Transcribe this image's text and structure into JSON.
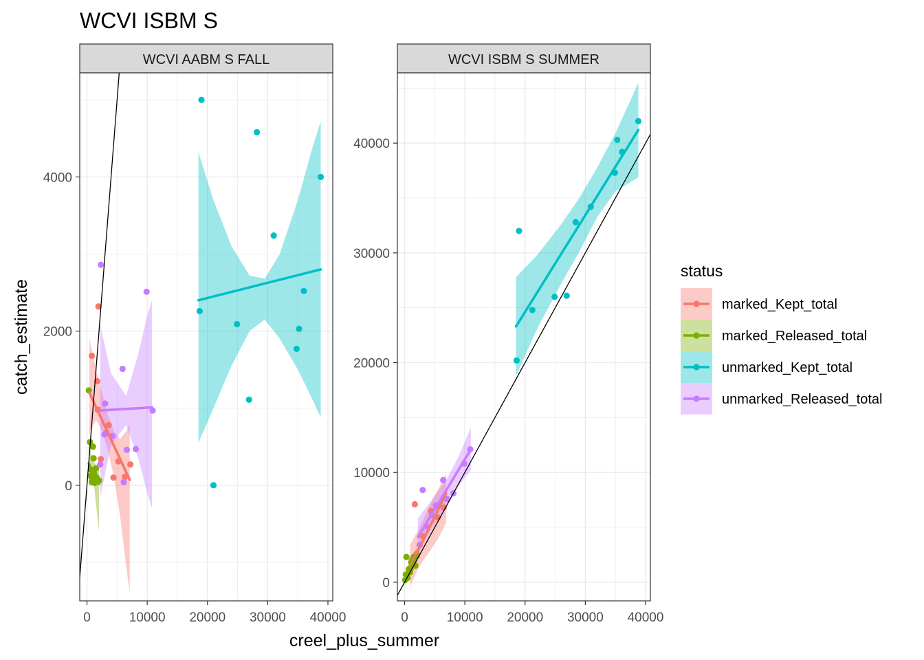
{
  "chart_data": {
    "type": "scatter",
    "title": "WCVI ISBM S",
    "xlabel": "creel_plus_summer",
    "ylabel": "catch_estimate",
    "legend": {
      "title": "status",
      "position": "right",
      "entries": [
        "marked_Kept_total",
        "marked_Released_total",
        "unmarked_Kept_total",
        "unmarked_Released_total"
      ]
    },
    "colors": {
      "marked_Kept_total": "#F8766D",
      "marked_Released_total": "#7CAE00",
      "unmarked_Kept_total": "#00BFC4",
      "unmarked_Released_total": "#C77CFF",
      "strip_fill": "#d9d9d9",
      "grid": "#ebebeb"
    },
    "grid": true,
    "reference_line": "y = x",
    "panels": [
      {
        "strip": "WCVI AABM S FALL",
        "xlim": [
          -1200,
          40800
        ],
        "ylim": [
          -1500,
          5350
        ],
        "x_ticks": [
          0,
          10000,
          20000,
          30000,
          40000
        ],
        "x_tick_labels": [
          "0",
          "10000",
          "20000",
          "30000",
          "40000"
        ],
        "y_ticks": [
          0,
          2000,
          4000
        ],
        "y_tick_labels": [
          "0",
          "2000",
          "4000"
        ],
        "series": [
          {
            "name": "marked_Kept_total",
            "points": [
              [
                800,
                1680
              ],
              [
                1900,
                2320
              ],
              [
                1700,
                1350
              ],
              [
                1800,
                980
              ],
              [
                2300,
                340
              ],
              [
                3200,
                680
              ],
              [
                3600,
                780
              ],
              [
                4400,
                100
              ],
              [
                5200,
                310
              ],
              [
                6300,
                110
              ],
              [
                7200,
                270
              ]
            ],
            "fit": [
              [
                400,
                1200
              ],
              [
                7100,
                70
              ]
            ],
            "band": [
              [
                400,
                1900,
                650
              ],
              [
                1500,
                1500,
                850
              ],
              [
                2500,
                1200,
                700
              ],
              [
                3500,
                900,
                450
              ],
              [
                4500,
                700,
                100
              ],
              [
                5500,
                600,
                -400
              ],
              [
                6500,
                700,
                -1050
              ],
              [
                7100,
                800,
                -1400
              ]
            ]
          },
          {
            "name": "marked_Released_total",
            "points": [
              [
                300,
                1230
              ],
              [
                500,
                560
              ],
              [
                700,
                200
              ],
              [
                600,
                120
              ],
              [
                900,
                80
              ],
              [
                1000,
                500
              ],
              [
                1100,
                350
              ],
              [
                1200,
                150
              ],
              [
                1300,
                30
              ],
              [
                1500,
                220
              ],
              [
                1600,
                100
              ],
              [
                2000,
                60
              ],
              [
                800,
                40
              ]
            ],
            "fit": [
              [
                300,
                280
              ],
              [
                2000,
                20
              ]
            ],
            "band": [
              [
                300,
                550,
                50
              ],
              [
                700,
                430,
                100
              ],
              [
                1100,
                310,
                40
              ],
              [
                1500,
                260,
                -250
              ],
              [
                2000,
                280,
                -600
              ]
            ]
          },
          {
            "name": "unmarked_Kept_total",
            "points": [
              [
                19000,
                5000
              ],
              [
                28200,
                4580
              ],
              [
                38800,
                4000
              ],
              [
                31000,
                3240
              ],
              [
                36000,
                2520
              ],
              [
                18700,
                2260
              ],
              [
                24900,
                2090
              ],
              [
                35200,
                2030
              ],
              [
                34800,
                1770
              ],
              [
                26900,
                1110
              ],
              [
                21000,
                0
              ]
            ],
            "fit": [
              [
                18500,
                2400
              ],
              [
                38800,
                2800
              ]
            ],
            "band": [
              [
                18500,
                4320,
                550
              ],
              [
                21000,
                3700,
                1000
              ],
              [
                24000,
                3100,
                1550
              ],
              [
                27000,
                2720,
                2000
              ],
              [
                29500,
                2680,
                2150
              ],
              [
                32000,
                3000,
                1900
              ],
              [
                35000,
                3700,
                1500
              ],
              [
                37500,
                4400,
                1100
              ],
              [
                38800,
                4720,
                880
              ]
            ]
          },
          {
            "name": "unmarked_Released_total",
            "points": [
              [
                2300,
                2860
              ],
              [
                2200,
                270
              ],
              [
                3000,
                1060
              ],
              [
                2900,
                660
              ],
              [
                4200,
                640
              ],
              [
                5900,
                1510
              ],
              [
                6100,
                40
              ],
              [
                6600,
                460
              ],
              [
                8100,
                470
              ],
              [
                9900,
                2510
              ],
              [
                10900,
                970
              ]
            ],
            "fit": [
              [
                2200,
                970
              ],
              [
                10800,
                1010
              ]
            ],
            "band": [
              [
                2200,
                2080,
                -150
              ],
              [
                4000,
                1450,
                520
              ],
              [
                6500,
                1160,
                780
              ],
              [
                8500,
                1700,
                350
              ],
              [
                10000,
                2200,
                -100
              ],
              [
                10800,
                2400,
                -300
              ]
            ]
          }
        ]
      },
      {
        "strip": "WCVI ISBM S SUMMER",
        "xlim": [
          -1200,
          40800
        ],
        "ylim": [
          -1700,
          46400
        ],
        "x_ticks": [
          0,
          10000,
          20000,
          30000,
          40000
        ],
        "x_tick_labels": [
          "0",
          "10000",
          "20000",
          "30000",
          "40000"
        ],
        "y_ticks": [
          0,
          10000,
          20000,
          30000,
          40000
        ],
        "y_tick_labels": [
          "0",
          "10000",
          "20000",
          "30000",
          "40000"
        ],
        "series": [
          {
            "name": "marked_Kept_total",
            "points": [
              [
                1700,
                7100
              ],
              [
                4400,
                6500
              ],
              [
                1200,
                2000
              ],
              [
                900,
                1300
              ],
              [
                2000,
                2600
              ],
              [
                3000,
                4200
              ],
              [
                6500,
                6800
              ],
              [
                5500,
                5900
              ]
            ],
            "fit": [
              [
                900,
                1400
              ],
              [
                6900,
                8100
              ]
            ],
            "band": [
              [
                900,
                3400,
                -400
              ],
              [
                2500,
                5000,
                1500
              ],
              [
                4000,
                6800,
                2700
              ],
              [
                5500,
                8400,
                3900
              ],
              [
                6900,
                9900,
                5400
              ]
            ]
          },
          {
            "name": "marked_Released_total",
            "points": [
              [
                300,
                2300
              ],
              [
                200,
                700
              ],
              [
                500,
                400
              ],
              [
                700,
                1200
              ],
              [
                1100,
                1800
              ],
              [
                1500,
                2300
              ],
              [
                1800,
                1500
              ],
              [
                2000,
                2400
              ],
              [
                100,
                200
              ],
              [
                900,
                900
              ]
            ],
            "fit": [
              [
                100,
                300
              ],
              [
                2100,
                2400
              ]
            ],
            "band": [
              [
                100,
                1000,
                -300
              ],
              [
                1000,
                1900,
                700
              ],
              [
                2100,
                3300,
                1500
              ]
            ]
          },
          {
            "name": "unmarked_Kept_total",
            "points": [
              [
                19000,
                32000
              ],
              [
                18600,
                20200
              ],
              [
                21200,
                24800
              ],
              [
                24900,
                26000
              ],
              [
                26900,
                26100
              ],
              [
                28400,
                32800
              ],
              [
                30900,
                34200
              ],
              [
                34900,
                37300
              ],
              [
                35300,
                40300
              ],
              [
                36100,
                39200
              ],
              [
                38800,
                42000
              ]
            ],
            "fit": [
              [
                18500,
                23300
              ],
              [
                38800,
                41200
              ]
            ],
            "band": [
              [
                18500,
                27800,
                18800
              ],
              [
                22000,
                29800,
                23100
              ],
              [
                26000,
                32600,
                27200
              ],
              [
                29000,
                35000,
                30100
              ],
              [
                32000,
                37800,
                33300
              ],
              [
                35000,
                40900,
                35600
              ],
              [
                38800,
                45500,
                36900
              ]
            ]
          },
          {
            "name": "unmarked_Released_total",
            "points": [
              [
                3000,
                8400
              ],
              [
                6400,
                9300
              ],
              [
                9900,
                10800
              ],
              [
                10900,
                12100
              ],
              [
                8100,
                8100
              ],
              [
                5200,
                7000
              ],
              [
                2500,
                3400
              ],
              [
                3600,
                5100
              ],
              [
                7000,
                7600
              ],
              [
                4500,
                6100
              ]
            ],
            "fit": [
              [
                2200,
                4100
              ],
              [
                11000,
                12100
              ]
            ],
            "band": [
              [
                2200,
                5800,
                2600
              ],
              [
                4500,
                7500,
                4900
              ],
              [
                7000,
                9400,
                7100
              ],
              [
                9000,
                11500,
                8800
              ],
              [
                11000,
                14100,
                10200
              ]
            ]
          }
        ]
      }
    ]
  }
}
